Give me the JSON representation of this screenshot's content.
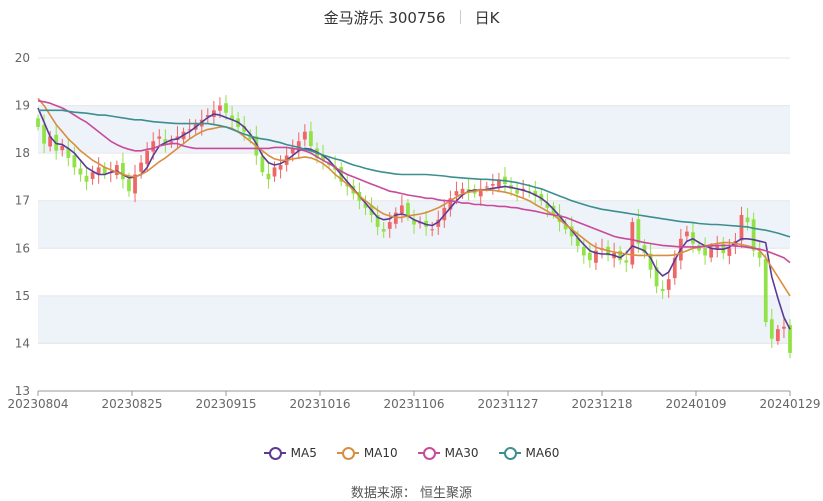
{
  "header": {
    "title": "金马游乐 300756",
    "period": "日K"
  },
  "source": "数据来源： 恒生聚源",
  "colors": {
    "up": "#ee6666",
    "down": "#91e246",
    "grid": "#e6e6e6",
    "band": "#eef2f9",
    "axis": "#666666"
  },
  "chart_data": {
    "type": "candlestick",
    "ylim": [
      13,
      20
    ],
    "y_ticks": [
      13,
      14,
      15,
      16,
      17,
      18,
      19,
      20
    ],
    "x_ticks": [
      "20230804",
      "20230825",
      "20230915",
      "20231016",
      "20231106",
      "20231127",
      "20231218",
      "20240109",
      "20240129"
    ],
    "series": [
      {
        "name": "MA5",
        "color": "#5b3a96"
      },
      {
        "name": "MA10",
        "color": "#d98e3f"
      },
      {
        "name": "MA30",
        "color": "#c94a9a"
      },
      {
        "name": "MA60",
        "color": "#3d8f8f"
      }
    ],
    "close": [
      18.55,
      18.2,
      18.35,
      18.05,
      18.15,
      17.9,
      17.7,
      17.55,
      17.4,
      17.6,
      17.7,
      17.55,
      17.6,
      17.75,
      17.45,
      17.2,
      17.55,
      17.8,
      18.05,
      18.25,
      18.35,
      18.2,
      18.25,
      18.35,
      18.45,
      18.5,
      18.6,
      18.7,
      18.8,
      18.9,
      19.0,
      18.85,
      18.7,
      18.55,
      18.45,
      18.3,
      17.95,
      17.6,
      17.45,
      17.7,
      17.75,
      17.95,
      18.1,
      18.25,
      18.45,
      18.15,
      17.9,
      17.85,
      17.75,
      17.65,
      17.4,
      17.3,
      17.15,
      17.0,
      16.85,
      16.7,
      16.45,
      16.35,
      16.55,
      16.75,
      16.9,
      16.65,
      16.5,
      16.55,
      16.45,
      16.4,
      16.6,
      16.85,
      17.05,
      17.2,
      17.25,
      17.2,
      17.15,
      17.25,
      17.3,
      17.35,
      17.45,
      17.35,
      17.25,
      17.15,
      17.25,
      17.2,
      17.1,
      17.0,
      16.85,
      16.7,
      16.55,
      16.4,
      16.25,
      16.05,
      15.85,
      15.75,
      15.95,
      16.0,
      15.85,
      15.9,
      15.75,
      15.7,
      16.55,
      16.1,
      15.9,
      15.55,
      15.2,
      15.1,
      15.35,
      15.8,
      16.2,
      16.35,
      16.1,
      15.95,
      15.85,
      16.0,
      16.05,
      15.9,
      16.0,
      16.15,
      16.7,
      16.55,
      15.95,
      15.8,
      14.45,
      14.1,
      14.3,
      14.35,
      13.8
    ],
    "ma5": [
      18.95,
      18.65,
      18.35,
      18.2,
      18.18,
      18.1,
      18.0,
      17.85,
      17.7,
      17.62,
      17.55,
      17.55,
      17.6,
      17.62,
      17.55,
      17.48,
      17.5,
      17.55,
      17.7,
      17.95,
      18.15,
      18.22,
      18.28,
      18.3,
      18.38,
      18.45,
      18.55,
      18.65,
      18.75,
      18.82,
      18.8,
      18.75,
      18.7,
      18.65,
      18.55,
      18.4,
      18.2,
      17.95,
      17.8,
      17.75,
      17.78,
      17.85,
      17.95,
      18.05,
      18.1,
      18.08,
      18.02,
      17.95,
      17.85,
      17.7,
      17.55,
      17.4,
      17.25,
      17.1,
      16.95,
      16.8,
      16.65,
      16.6,
      16.62,
      16.7,
      16.72,
      16.68,
      16.6,
      16.55,
      16.5,
      16.48,
      16.55,
      16.7,
      16.85,
      17.0,
      17.12,
      17.2,
      17.22,
      17.22,
      17.24,
      17.26,
      17.28,
      17.3,
      17.28,
      17.25,
      17.22,
      17.18,
      17.12,
      17.05,
      16.95,
      16.82,
      16.68,
      16.52,
      16.38,
      16.22,
      16.08,
      15.95,
      15.9,
      15.88,
      15.88,
      15.85,
      15.8,
      15.9,
      16.05,
      16.0,
      15.95,
      15.8,
      15.55,
      15.42,
      15.5,
      15.75,
      15.98,
      16.15,
      16.2,
      16.12,
      16.05,
      16.0,
      15.98,
      15.98,
      16.02,
      16.12,
      16.2,
      16.2,
      16.18,
      16.15,
      16.12,
      15.4,
      14.95,
      14.55,
      14.3
    ],
    "ma10": [
      19.15,
      19.0,
      18.8,
      18.6,
      18.45,
      18.3,
      18.18,
      18.05,
      17.95,
      17.85,
      17.78,
      17.7,
      17.65,
      17.6,
      17.55,
      17.52,
      17.5,
      17.55,
      17.62,
      17.72,
      17.82,
      17.9,
      18.0,
      18.1,
      18.2,
      18.3,
      18.38,
      18.45,
      18.5,
      18.52,
      18.55,
      18.55,
      18.52,
      18.45,
      18.35,
      18.25,
      18.15,
      18.05,
      17.95,
      17.88,
      17.85,
      17.85,
      17.88,
      17.9,
      17.92,
      17.9,
      17.85,
      17.78,
      17.68,
      17.55,
      17.45,
      17.35,
      17.22,
      17.1,
      17.0,
      16.9,
      16.8,
      16.72,
      16.68,
      16.65,
      16.65,
      16.68,
      16.7,
      16.72,
      16.75,
      16.8,
      16.85,
      16.92,
      17.0,
      17.08,
      17.15,
      17.18,
      17.2,
      17.22,
      17.22,
      17.22,
      17.2,
      17.18,
      17.15,
      17.1,
      17.05,
      17.0,
      16.92,
      16.85,
      16.78,
      16.7,
      16.6,
      16.5,
      16.4,
      16.3,
      16.2,
      16.1,
      16.02,
      15.98,
      15.95,
      15.92,
      15.9,
      15.88,
      15.86,
      15.85,
      15.85,
      15.85,
      15.85,
      15.85,
      15.85,
      15.86,
      15.9,
      15.95,
      16.0,
      16.02,
      16.05,
      16.08,
      16.1,
      16.12,
      16.12,
      16.1,
      16.08,
      16.05,
      16.02,
      15.95,
      15.8,
      15.6,
      15.4,
      15.2,
      15.0
    ],
    "ma30": [
      19.1,
      19.08,
      19.05,
      19.0,
      18.95,
      18.88,
      18.8,
      18.72,
      18.65,
      18.55,
      18.45,
      18.35,
      18.25,
      18.18,
      18.12,
      18.08,
      18.05,
      18.05,
      18.08,
      18.1,
      18.15,
      18.18,
      18.2,
      18.2,
      18.15,
      18.12,
      18.1,
      18.1,
      18.1,
      18.1,
      18.1,
      18.1,
      18.1,
      18.1,
      18.1,
      18.1,
      18.1,
      18.1,
      18.1,
      18.12,
      18.12,
      18.12,
      18.1,
      18.08,
      18.05,
      18.0,
      17.92,
      17.85,
      17.78,
      17.7,
      17.62,
      17.55,
      17.5,
      17.45,
      17.4,
      17.35,
      17.3,
      17.25,
      17.2,
      17.18,
      17.15,
      17.12,
      17.1,
      17.08,
      17.05,
      17.05,
      17.02,
      17.0,
      17.0,
      16.98,
      16.95,
      16.95,
      16.92,
      16.92,
      16.9,
      16.9,
      16.88,
      16.88,
      16.86,
      16.85,
      16.82,
      16.8,
      16.78,
      16.75,
      16.72,
      16.7,
      16.68,
      16.65,
      16.6,
      16.55,
      16.5,
      16.45,
      16.4,
      16.35,
      16.3,
      16.25,
      16.22,
      16.2,
      16.18,
      16.15,
      16.12,
      16.1,
      16.08,
      16.06,
      16.05,
      16.04,
      16.03,
      16.03,
      16.03,
      16.03,
      16.04,
      16.05,
      16.06,
      16.06,
      16.06,
      16.05,
      16.04,
      16.02,
      16.0,
      15.98,
      15.95,
      15.9,
      15.85,
      15.8,
      15.7
    ],
    "ma60": [
      18.9,
      18.9,
      18.9,
      18.9,
      18.9,
      18.88,
      18.86,
      18.85,
      18.84,
      18.82,
      18.8,
      18.8,
      18.78,
      18.76,
      18.74,
      18.72,
      18.7,
      18.7,
      18.68,
      18.66,
      18.65,
      18.64,
      18.63,
      18.62,
      18.62,
      18.62,
      18.62,
      18.62,
      18.62,
      18.6,
      18.58,
      18.55,
      18.5,
      18.45,
      18.4,
      18.36,
      18.32,
      18.3,
      18.28,
      18.25,
      18.22,
      18.18,
      18.15,
      18.12,
      18.08,
      18.05,
      18.0,
      17.96,
      17.92,
      17.88,
      17.85,
      17.8,
      17.75,
      17.72,
      17.68,
      17.65,
      17.62,
      17.6,
      17.58,
      17.56,
      17.55,
      17.55,
      17.55,
      17.55,
      17.55,
      17.54,
      17.53,
      17.52,
      17.5,
      17.49,
      17.48,
      17.47,
      17.46,
      17.45,
      17.45,
      17.44,
      17.43,
      17.42,
      17.4,
      17.38,
      17.35,
      17.32,
      17.28,
      17.25,
      17.2,
      17.15,
      17.1,
      17.05,
      17.0,
      16.96,
      16.92,
      16.88,
      16.85,
      16.82,
      16.8,
      16.78,
      16.76,
      16.74,
      16.72,
      16.7,
      16.68,
      16.66,
      16.64,
      16.62,
      16.6,
      16.58,
      16.56,
      16.55,
      16.54,
      16.52,
      16.51,
      16.5,
      16.5,
      16.49,
      16.48,
      16.47,
      16.46,
      16.45,
      16.42,
      16.4,
      16.38,
      16.35,
      16.32,
      16.28,
      16.24
    ]
  }
}
